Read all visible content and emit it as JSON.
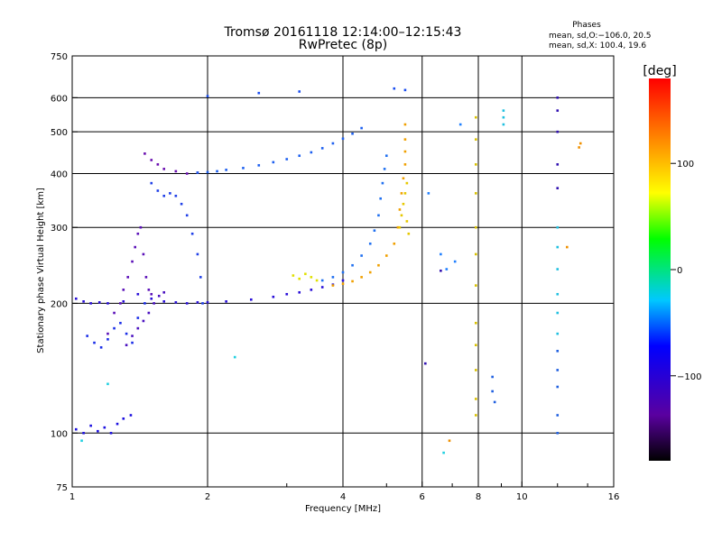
{
  "chart_data": {
    "type": "scatter",
    "title": "Tromsø 20161118 12:14:00–12:15:43",
    "subtitle": "RwPretec (8p)",
    "xlabel": "Frequency [MHz]",
    "ylabel": "Stationary phase Virtual Height [km]",
    "x_scale": "log",
    "y_scale": "log",
    "xlim": [
      1,
      16
    ],
    "ylim": [
      75,
      750
    ],
    "x_ticks": [
      1,
      2,
      4,
      6,
      8,
      10,
      16
    ],
    "x_minor_ticks": [
      3,
      5,
      7,
      9,
      12,
      14
    ],
    "y_ticks": [
      75,
      100,
      200,
      300,
      400,
      500,
      600,
      750
    ],
    "x_grid": [
      2,
      4,
      6,
      8,
      10
    ],
    "y_grid": [
      100,
      200,
      300,
      400,
      500,
      600
    ],
    "grid": true,
    "stats": {
      "heading": "Phases",
      "line1": "mean, sd,O:−106.0, 20.5",
      "line2": "mean, sd,X: 100.4, 19.6"
    },
    "colorbar": {
      "label": "[deg]",
      "range": [
        -180,
        180
      ],
      "ticks": [
        100,
        0,
        -100
      ],
      "tick_labels": [
        "100",
        "0",
        "−100"
      ]
    },
    "series": [
      {
        "color": "#1c10e0",
        "points": [
          [
            1.02,
            102
          ],
          [
            1.06,
            100
          ],
          [
            1.1,
            104
          ],
          [
            1.14,
            101
          ],
          [
            1.18,
            103
          ],
          [
            1.22,
            100
          ],
          [
            1.26,
            105
          ],
          [
            1.3,
            108
          ],
          [
            1.35,
            110
          ]
        ]
      },
      {
        "color": "#2a10d8",
        "points": [
          [
            1.02,
            205
          ],
          [
            1.06,
            202
          ],
          [
            1.1,
            200
          ],
          [
            1.15,
            201
          ],
          [
            1.2,
            200
          ],
          [
            1.3,
            202
          ],
          [
            1.4,
            210
          ],
          [
            1.5,
            205
          ],
          [
            1.6,
            202
          ],
          [
            1.7,
            201
          ],
          [
            1.8,
            200
          ],
          [
            1.9,
            201
          ],
          [
            2.0,
            201
          ],
          [
            2.2,
            202
          ],
          [
            2.5,
            204
          ],
          [
            2.8,
            207
          ],
          [
            3.0,
            210
          ],
          [
            3.2,
            212
          ],
          [
            3.4,
            215
          ],
          [
            3.6,
            218
          ],
          [
            3.8,
            221
          ],
          [
            4.0,
            226
          ]
        ]
      },
      {
        "color": "#1a2ee8",
        "points": [
          [
            1.08,
            168
          ],
          [
            1.12,
            162
          ],
          [
            1.16,
            158
          ],
          [
            1.2,
            165
          ],
          [
            1.24,
            175
          ],
          [
            1.28,
            180
          ],
          [
            1.32,
            170
          ],
          [
            1.36,
            162
          ],
          [
            1.4,
            185
          ],
          [
            1.45,
            200
          ]
        ]
      },
      {
        "color": "#5a0fb8",
        "points": [
          [
            1.2,
            170
          ],
          [
            1.24,
            190
          ],
          [
            1.28,
            200
          ],
          [
            1.3,
            215
          ],
          [
            1.33,
            230
          ],
          [
            1.36,
            250
          ],
          [
            1.38,
            270
          ],
          [
            1.4,
            290
          ],
          [
            1.42,
            300
          ],
          [
            1.44,
            260
          ],
          [
            1.46,
            230
          ],
          [
            1.48,
            215
          ],
          [
            1.5,
            210
          ]
        ]
      },
      {
        "color": "#4a10c0",
        "points": [
          [
            1.32,
            160
          ],
          [
            1.36,
            168
          ],
          [
            1.4,
            175
          ],
          [
            1.44,
            182
          ],
          [
            1.48,
            190
          ],
          [
            1.52,
            200
          ],
          [
            1.56,
            208
          ],
          [
            1.6,
            212
          ]
        ]
      },
      {
        "color": "#6a0fb0",
        "points": [
          [
            1.45,
            445
          ],
          [
            1.5,
            430
          ],
          [
            1.55,
            420
          ],
          [
            1.6,
            410
          ],
          [
            1.7,
            405
          ],
          [
            1.8,
            400
          ],
          [
            1.9,
            402
          ]
        ]
      },
      {
        "color": "#2040e8",
        "points": [
          [
            1.5,
            380
          ],
          [
            1.55,
            365
          ],
          [
            1.6,
            355
          ],
          [
            1.65,
            360
          ],
          [
            1.7,
            355
          ],
          [
            1.75,
            340
          ],
          [
            1.8,
            320
          ],
          [
            1.85,
            290
          ],
          [
            1.9,
            260
          ],
          [
            1.93,
            230
          ],
          [
            1.95,
            200
          ]
        ]
      },
      {
        "color": "#1e60f0",
        "points": [
          [
            1.9,
            402
          ],
          [
            2.0,
            403
          ],
          [
            2.1,
            405
          ],
          [
            2.2,
            408
          ],
          [
            2.4,
            412
          ],
          [
            2.6,
            418
          ],
          [
            2.8,
            425
          ],
          [
            3.0,
            432
          ],
          [
            3.2,
            440
          ],
          [
            3.4,
            448
          ],
          [
            3.6,
            458
          ],
          [
            3.8,
            470
          ],
          [
            4.0,
            482
          ],
          [
            4.2,
            495
          ],
          [
            4.4,
            510
          ]
        ]
      },
      {
        "color": "#2070f0",
        "points": [
          [
            3.6,
            226
          ],
          [
            3.8,
            230
          ],
          [
            4.0,
            236
          ],
          [
            4.2,
            245
          ],
          [
            4.4,
            258
          ],
          [
            4.6,
            275
          ],
          [
            4.7,
            295
          ],
          [
            4.8,
            320
          ],
          [
            4.85,
            350
          ],
          [
            4.9,
            380
          ],
          [
            4.95,
            410
          ],
          [
            5.0,
            440
          ]
        ]
      },
      {
        "color": "#e0e000",
        "points": [
          [
            3.1,
            232
          ],
          [
            3.2,
            228
          ],
          [
            3.3,
            234
          ],
          [
            3.4,
            230
          ],
          [
            3.5,
            226
          ]
        ]
      },
      {
        "color": "#f0a000",
        "points": [
          [
            3.8,
            220
          ],
          [
            4.0,
            222
          ],
          [
            4.2,
            225
          ],
          [
            4.4,
            230
          ],
          [
            4.6,
            236
          ],
          [
            4.8,
            245
          ],
          [
            5.0,
            258
          ],
          [
            5.2,
            275
          ],
          [
            5.3,
            300
          ],
          [
            5.35,
            330
          ],
          [
            5.4,
            360
          ],
          [
            5.45,
            390
          ],
          [
            5.5,
            420
          ],
          [
            5.5,
            450
          ],
          [
            5.5,
            480
          ],
          [
            5.5,
            520
          ]
        ]
      },
      {
        "color": "#e6c800",
        "points": [
          [
            5.35,
            300
          ],
          [
            5.4,
            320
          ],
          [
            5.45,
            340
          ],
          [
            5.5,
            360
          ],
          [
            5.55,
            380
          ],
          [
            5.55,
            310
          ],
          [
            5.6,
            290
          ]
        ]
      },
      {
        "color": "#1a4ef0",
        "points": [
          [
            2.0,
            605
          ],
          [
            2.6,
            615
          ],
          [
            3.2,
            620
          ],
          [
            5.2,
            630
          ],
          [
            5.5,
            625
          ]
        ]
      },
      {
        "color": "#2080ff",
        "points": [
          [
            6.2,
            360
          ],
          [
            6.6,
            260
          ],
          [
            6.8,
            240
          ],
          [
            7.1,
            250
          ],
          [
            7.3,
            520
          ]
        ]
      },
      {
        "color": "#d8c000",
        "points": [
          [
            7.9,
            540
          ],
          [
            7.9,
            480
          ],
          [
            7.9,
            420
          ],
          [
            7.9,
            360
          ],
          [
            7.9,
            300
          ],
          [
            7.9,
            260
          ],
          [
            7.9,
            220
          ],
          [
            7.9,
            180
          ],
          [
            7.9,
            160
          ],
          [
            7.9,
            140
          ],
          [
            7.9,
            120
          ],
          [
            7.9,
            110
          ]
        ]
      },
      {
        "color": "#20c0e0",
        "points": [
          [
            9.1,
            560
          ],
          [
            9.1,
            540
          ],
          [
            9.1,
            520
          ],
          [
            12.0,
            300
          ],
          [
            12.0,
            270
          ],
          [
            12.0,
            240
          ],
          [
            12.0,
            210
          ],
          [
            12.0,
            190
          ],
          [
            12.0,
            170
          ]
        ]
      },
      {
        "color": "#2060e0",
        "points": [
          [
            8.6,
            135
          ],
          [
            8.6,
            125
          ],
          [
            8.7,
            118
          ],
          [
            12.0,
            155
          ],
          [
            12.0,
            140
          ],
          [
            12.0,
            128
          ],
          [
            12.0,
            110
          ],
          [
            12.0,
            100
          ]
        ]
      },
      {
        "color": "#3010b0",
        "points": [
          [
            12.0,
            600
          ],
          [
            12.0,
            560
          ],
          [
            12.0,
            500
          ],
          [
            12.0,
            420
          ],
          [
            12.0,
            370
          ],
          [
            6.1,
            145
          ],
          [
            6.6,
            238
          ]
        ]
      },
      {
        "color": "#f09000",
        "points": [
          [
            13.5,
            470
          ],
          [
            13.4,
            460
          ],
          [
            6.9,
            96
          ],
          [
            12.6,
            270
          ]
        ]
      },
      {
        "color": "#20d0e0",
        "points": [
          [
            6.7,
            90
          ],
          [
            2.3,
            150
          ],
          [
            1.05,
            96
          ],
          [
            1.2,
            130
          ]
        ]
      }
    ]
  }
}
